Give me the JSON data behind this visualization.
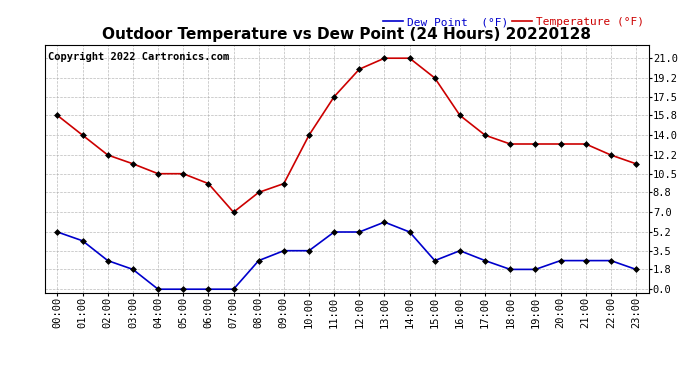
{
  "title": "Outdoor Temperature vs Dew Point (24 Hours) 20220128",
  "copyright": "Copyright 2022 Cartronics.com",
  "x_labels": [
    "00:00",
    "01:00",
    "02:00",
    "03:00",
    "04:00",
    "05:00",
    "06:00",
    "07:00",
    "08:00",
    "09:00",
    "10:00",
    "11:00",
    "12:00",
    "13:00",
    "14:00",
    "15:00",
    "16:00",
    "17:00",
    "18:00",
    "19:00",
    "20:00",
    "21:00",
    "22:00",
    "23:00"
  ],
  "temperature": [
    15.8,
    14.0,
    12.2,
    11.4,
    10.5,
    10.5,
    9.6,
    7.0,
    8.8,
    9.6,
    14.0,
    17.5,
    20.0,
    21.0,
    21.0,
    19.2,
    15.8,
    14.0,
    13.2,
    13.2,
    13.2,
    13.2,
    12.2,
    11.4
  ],
  "dew_point": [
    5.2,
    4.4,
    2.6,
    1.8,
    0.0,
    0.0,
    0.0,
    0.0,
    2.6,
    3.5,
    3.5,
    5.2,
    5.2,
    6.1,
    5.2,
    2.6,
    3.5,
    2.6,
    1.8,
    1.8,
    2.6,
    2.6,
    2.6,
    1.8
  ],
  "temp_color": "#cc0000",
  "dew_color": "#0000cc",
  "legend_dew_label": "Dew Point  (°F)",
  "legend_temp_label": "Temperature (°F)",
  "y_ticks": [
    0.0,
    1.8,
    3.5,
    5.2,
    7.0,
    8.8,
    10.5,
    12.2,
    14.0,
    15.8,
    17.5,
    19.2,
    21.0
  ],
  "ylim": [
    -0.3,
    22.2
  ],
  "background_color": "#ffffff",
  "grid_color": "#aaaaaa",
  "title_fontsize": 11,
  "tick_fontsize": 7.5,
  "copyright_fontsize": 7.5
}
